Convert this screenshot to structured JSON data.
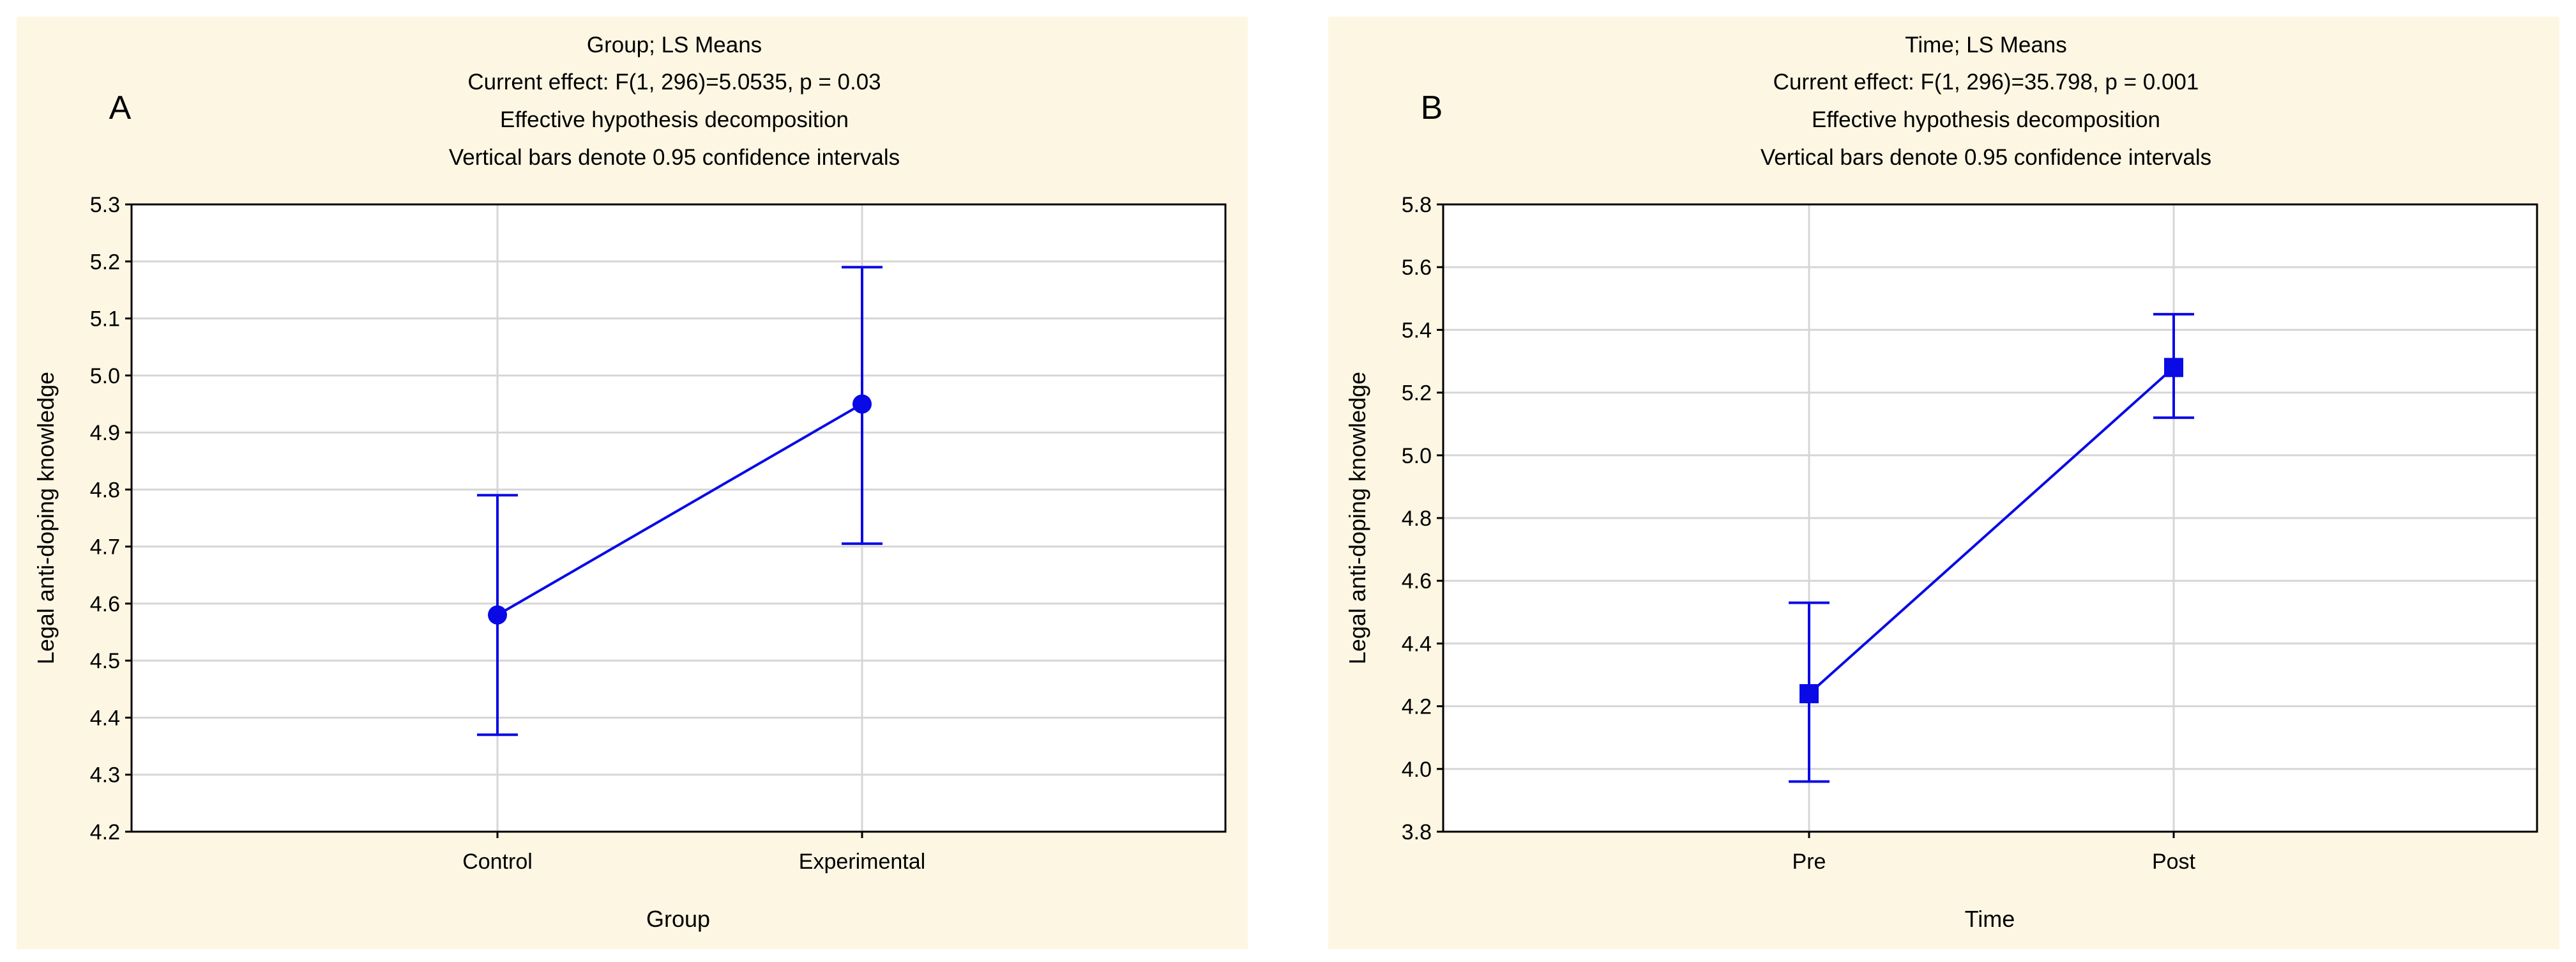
{
  "chart_data": [
    {
      "panel": "A",
      "type": "line",
      "title_lines": [
        "Group; LS Means",
        "Current effect: F(1, 296)=5.0535,   p = 0.03",
        "Effective hypothesis decomposition",
        "Vertical bars denote 0.95 confidence intervals"
      ],
      "xlabel": "Group",
      "ylabel": "Legal anti-doping knowledge",
      "categories": [
        "Control",
        "Experimental"
      ],
      "ylim": [
        4.2,
        5.3
      ],
      "yticks": [
        "4.2",
        "4.3",
        "4.4",
        "4.5",
        "4.6",
        "4.7",
        "4.8",
        "4.9",
        "5.0",
        "5.1",
        "5.2",
        "5.3"
      ],
      "marker": "circle",
      "series": [
        {
          "values": [
            4.58,
            4.95
          ],
          "ci_low": [
            4.37,
            4.705
          ],
          "ci_high": [
            4.79,
            5.19
          ]
        }
      ],
      "grid": true,
      "legend": "none"
    },
    {
      "panel": "B",
      "type": "line",
      "title_lines": [
        "Time; LS Means",
        "Current effect: F(1, 296)=35.798,   p = 0.001",
        "Effective hypothesis decomposition",
        "Vertical bars denote 0.95 confidence intervals"
      ],
      "xlabel": "Time",
      "ylabel": "Legal anti-doping knowledge",
      "categories": [
        "Pre",
        "Post"
      ],
      "ylim": [
        3.8,
        5.8
      ],
      "yticks": [
        "3.8",
        "4.0",
        "4.2",
        "4.4",
        "4.6",
        "4.8",
        "5.0",
        "5.2",
        "5.4",
        "5.6",
        "5.8"
      ],
      "marker": "square",
      "series": [
        {
          "values": [
            4.24,
            5.28
          ],
          "ci_low": [
            3.96,
            5.12
          ],
          "ci_high": [
            4.53,
            5.45
          ]
        }
      ],
      "grid": true,
      "legend": "none"
    }
  ],
  "colors": {
    "series": "#0a0ae6",
    "panel_background": "#fcf6e3",
    "grid": "#d6d6d6"
  }
}
